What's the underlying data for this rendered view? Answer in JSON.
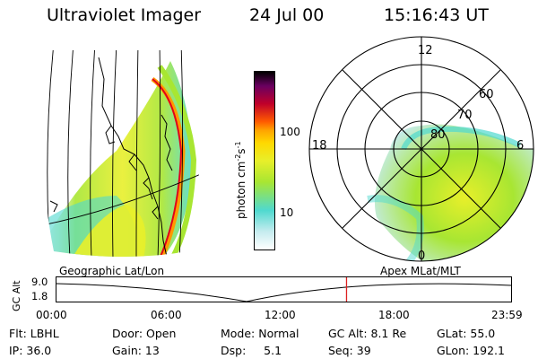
{
  "header": {
    "title": "Ultraviolet Imager",
    "date": "24 Jul 00",
    "time": "15:16:43 UT"
  },
  "geo_map": {
    "label": "Geographic Lat/Lon"
  },
  "colorbar": {
    "unit_label": "photon cm",
    "unit_exp1": "-2",
    "unit_s": "s",
    "unit_exp2": "-1",
    "tick_high": "100",
    "tick_low": "10"
  },
  "polar_map": {
    "label": "Apex MLat/MLT",
    "mlt_12": "12",
    "mlt_18": "18",
    "mlt_6": "6",
    "mlt_0": "0",
    "lat_60": "60",
    "lat_70": "70",
    "lat_80": "80"
  },
  "altitude_strip": {
    "axis_label": "GC Alt",
    "y_top": "9.0",
    "y_bottom": "1.8",
    "x_ticks": [
      "00:00",
      "06:00",
      "12:00",
      "18:00",
      "23:59"
    ],
    "current_time_fraction": 0.638
  },
  "footer": {
    "row1": [
      "Flt: LBHL",
      "Door: Open",
      "Mode: Normal",
      "GC Alt: 8.1 Re",
      "GLat: 55.0"
    ],
    "row2": [
      "IP: 36.0",
      "Gain: 13",
      "Dsp:     5.1",
      "Seq: 39",
      "GLon: 192.1"
    ]
  },
  "colors": {
    "marker": "#dd2222",
    "scale": [
      "#ffffff",
      "#4fd9cf",
      "#a8e632",
      "#e8ef2a",
      "#ff9900",
      "#e0001a",
      "#8a0066",
      "#000000"
    ]
  }
}
